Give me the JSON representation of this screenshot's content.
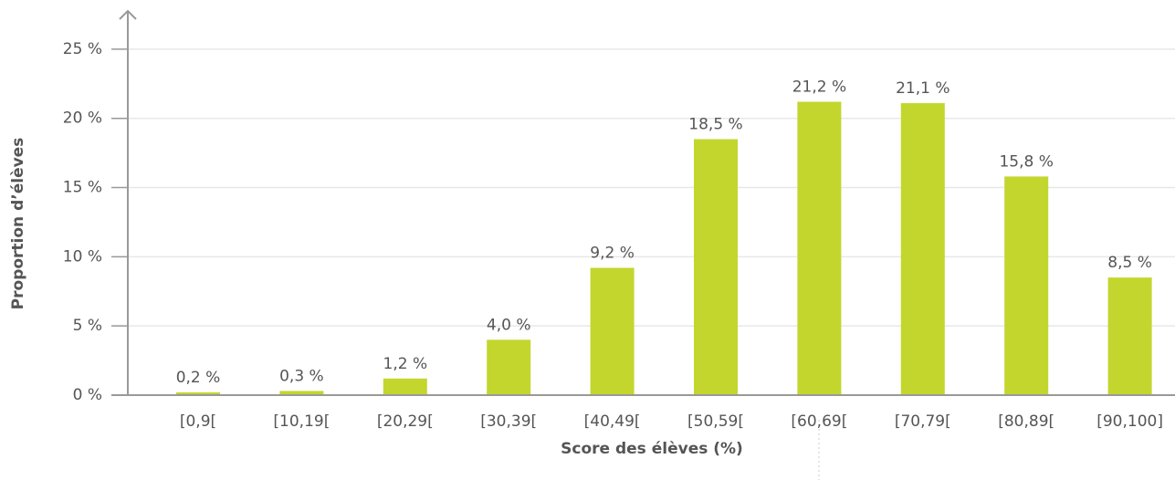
{
  "chart_data": {
    "type": "bar",
    "x_label": "Score des élèves (%)",
    "y_label": "Proportion d’élèves",
    "categories": [
      "[0,9[",
      "[10,19[",
      "[20,29[",
      "[30,39[",
      "[40,49[",
      "[50,59[",
      "[60,69[",
      "[70,79[",
      "[80,89[",
      "[90,100]"
    ],
    "values": [
      0.2,
      0.3,
      1.2,
      4.0,
      9.2,
      18.5,
      21.2,
      21.1,
      15.8,
      8.5
    ],
    "value_labels": [
      "0,2 %",
      "0,3 %",
      "1,2 %",
      "4,0 %",
      "9,2 %",
      "18,5 %",
      "21,2 %",
      "21,1 %",
      "15,8 %",
      "8,5 %"
    ],
    "color": "#c2d62e",
    "ylim": [
      0,
      27.5
    ],
    "yticks": [
      {
        "value": 0,
        "label": "0 %"
      },
      {
        "value": 5,
        "label": "5 %"
      },
      {
        "value": 10,
        "label": "10 %"
      },
      {
        "value": 15,
        "label": "15 %"
      },
      {
        "value": 20,
        "label": "20 %"
      },
      {
        "value": 25,
        "label": "25 %"
      }
    ],
    "grid": true
  }
}
